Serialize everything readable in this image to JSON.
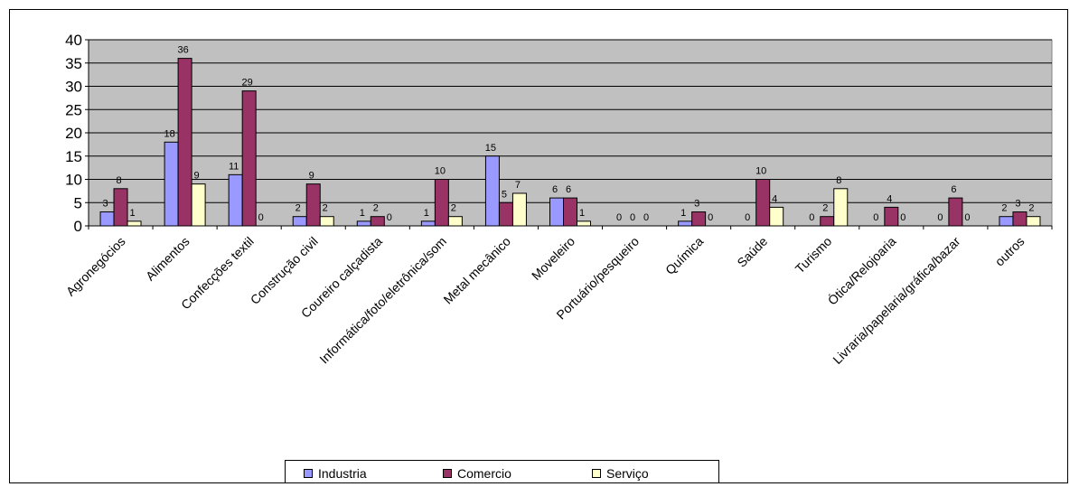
{
  "chart_data": {
    "type": "bar",
    "title": "",
    "xlabel": "",
    "ylabel": "",
    "ylim": [
      0,
      40
    ],
    "yticks": [
      "0",
      "5",
      "10",
      "15",
      "20",
      "25",
      "30",
      "35",
      "40"
    ],
    "grid": true,
    "legend_position": "bottom",
    "categories": [
      "Agronegócios",
      "Alimentos",
      "Confecções textil",
      "Construção civil",
      "Coureiro calçadista",
      "Informática/foto/eletrônica/som",
      "Metal mecânico",
      "Moveleiro",
      "Portuário/pesqueiro",
      "Química",
      "Saúde",
      "Turismo",
      "Ótica/Relojoaria",
      "Livraria/papelaria/gráfica/bazar",
      "outros"
    ],
    "series": [
      {
        "name": "Industria",
        "color": "#9999ff",
        "values": [
          3,
          18,
          11,
          2,
          1,
          1,
          15,
          6,
          0,
          1,
          0,
          0,
          0,
          0,
          2
        ]
      },
      {
        "name": "Comercio",
        "color": "#993366",
        "values": [
          8,
          36,
          29,
          9,
          2,
          10,
          5,
          6,
          0,
          3,
          10,
          2,
          4,
          6,
          3
        ]
      },
      {
        "name": "Serviço",
        "color": "#ffffcc",
        "values": [
          1,
          9,
          0,
          2,
          0,
          2,
          7,
          1,
          0,
          0,
          4,
          8,
          0,
          0,
          2
        ]
      }
    ],
    "plot_background": "#c0c0c0"
  }
}
